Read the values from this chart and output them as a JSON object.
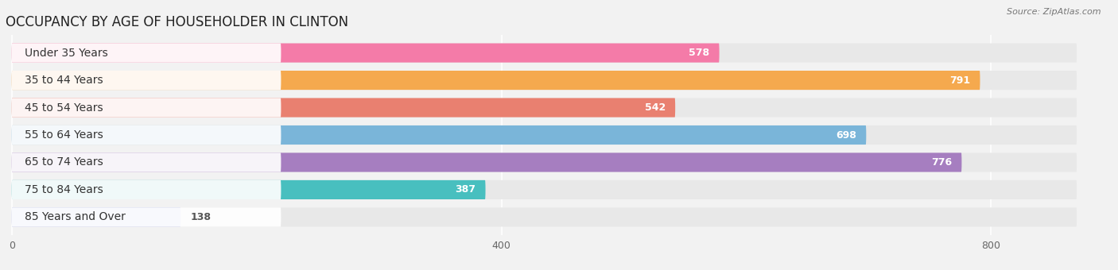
{
  "title": "OCCUPANCY BY AGE OF HOUSEHOLDER IN CLINTON",
  "source": "Source: ZipAtlas.com",
  "categories": [
    "Under 35 Years",
    "35 to 44 Years",
    "45 to 54 Years",
    "55 to 64 Years",
    "65 to 74 Years",
    "75 to 84 Years",
    "85 Years and Over"
  ],
  "values": [
    578,
    791,
    542,
    698,
    776,
    387,
    138
  ],
  "bar_colors": [
    "#F47BA8",
    "#F5A94E",
    "#E98070",
    "#7AB5D9",
    "#A67EC0",
    "#48BFBF",
    "#B3B8E8"
  ],
  "background_color": "#f2f2f2",
  "track_color": "#e8e8e8",
  "xlim_max": 870,
  "xticks": [
    0,
    400,
    800
  ],
  "title_fontsize": 12,
  "label_fontsize": 10,
  "value_fontsize": 9,
  "value_threshold": 200
}
